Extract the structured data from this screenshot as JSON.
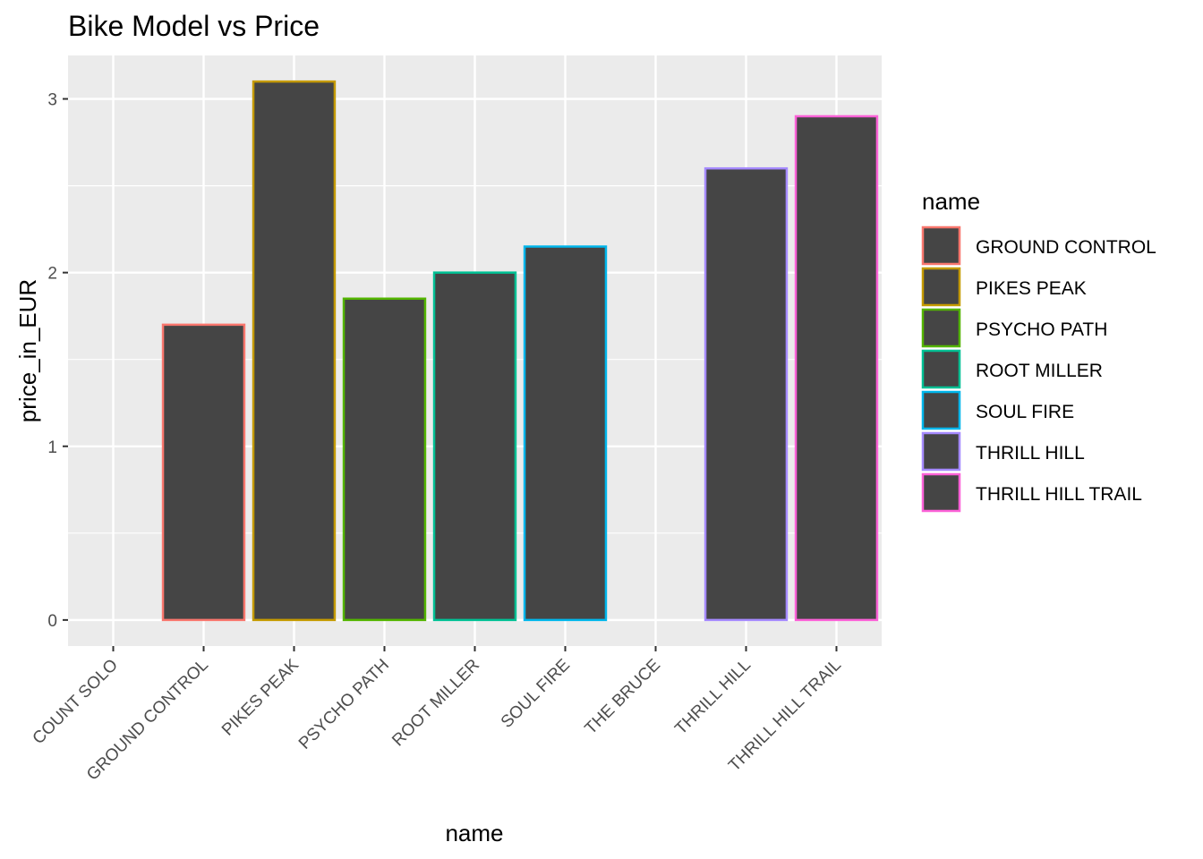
{
  "chart_data": {
    "type": "bar",
    "title": "Bike Model vs Price",
    "xlabel": "name",
    "ylabel": "price_in_EUR",
    "categories": [
      "COUNT SOLO",
      "GROUND CONTROL",
      "PIKES PEAK",
      "PSYCHO PATH",
      "ROOT MILLER",
      "SOUL FIRE",
      "THE BRUCE",
      "THRILL HILL",
      "THRILL HILL TRAIL"
    ],
    "values": [
      null,
      1.7,
      3.1,
      1.85,
      2.0,
      2.15,
      null,
      2.6,
      2.9
    ],
    "bar_fill": "#454545",
    "outline_colors": [
      "",
      "#F8766D",
      "#C49A00",
      "#53B400",
      "#00C094",
      "#00B6EB",
      "",
      "#A58AFF",
      "#FB61D7"
    ],
    "ylim": [
      -0.15,
      3.25
    ],
    "yticks": [
      0,
      1,
      2,
      3
    ],
    "grid": true,
    "panel_background": "#EBEBEB",
    "legend": {
      "title": "name",
      "placement": "right",
      "entries": [
        {
          "label": "GROUND CONTROL",
          "color": "#F8766D"
        },
        {
          "label": "PIKES PEAK",
          "color": "#C49A00"
        },
        {
          "label": "PSYCHO PATH",
          "color": "#53B400"
        },
        {
          "label": "ROOT MILLER",
          "color": "#00C094"
        },
        {
          "label": "SOUL FIRE",
          "color": "#00B6EB"
        },
        {
          "label": "THRILL HILL",
          "color": "#A58AFF"
        },
        {
          "label": "THRILL HILL TRAIL",
          "color": "#FB61D7"
        }
      ]
    }
  }
}
